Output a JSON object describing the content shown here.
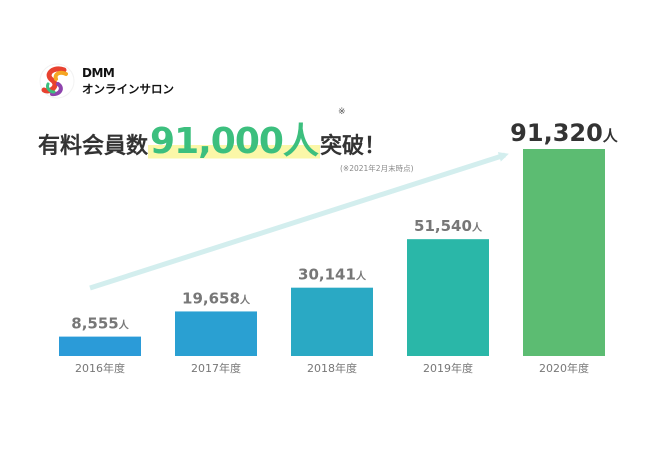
{
  "brand": {
    "logo_top": "DMM",
    "logo_bottom": "オンラインサロン"
  },
  "headline": {
    "prefix": "有料会員数",
    "number": "91,000人",
    "asterisk": "※",
    "suffix": "突破！",
    "footnote": "(※2021年2月末時点)"
  },
  "colors": {
    "highlight_green": "#3cbf7e",
    "highlight_marker": "#fbf7a8",
    "trend_arrow": "#d3eeee",
    "label_gray": "#777777"
  },
  "chart_data": {
    "type": "bar",
    "title": "",
    "xlabel": "",
    "ylabel": "",
    "ylim": [
      0,
      91320
    ],
    "grid": false,
    "legend": "none",
    "categories": [
      "2016年度",
      "2017年度",
      "2018年度",
      "2019年度",
      "2020年度"
    ],
    "values": [
      8555,
      19658,
      30141,
      51540,
      91320
    ],
    "value_labels": [
      "8,555",
      "19,658",
      "30,141",
      "51,540",
      "91,320"
    ],
    "unit": "人",
    "bar_colors": [
      "#2b9bd8",
      "#2aa0d2",
      "#2aa9c4",
      "#2ab7a8",
      "#5cbc72"
    ]
  }
}
